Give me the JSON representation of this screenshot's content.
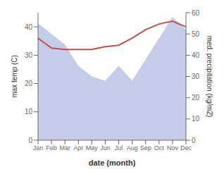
{
  "chart_data": {
    "type": "line",
    "categories": [
      "Jan",
      "Feb",
      "Mar",
      "Apr",
      "May",
      "Jun",
      "Jul",
      "Aug",
      "Sep",
      "Oct",
      "Nov",
      "Dec"
    ],
    "series": [
      {
        "type": "area",
        "axis": "y2",
        "color": "#c5cce8",
        "values": [
          55,
          50,
          45,
          35,
          30,
          28,
          35,
          28,
          38,
          48,
          58,
          52
        ]
      },
      {
        "type": "line",
        "color": "#c0504d",
        "values": [
          36,
          32.5,
          32,
          32,
          32,
          33,
          33.5,
          36,
          39,
          41,
          42,
          40
        ]
      }
    ],
    "x_label": "date (month)",
    "y_label": "max temp (C)",
    "y2_label": "med. precipitation (kg/m2)",
    "ylim": [
      0,
      45
    ],
    "yticks": [
      0,
      10,
      20,
      30,
      40
    ],
    "y2lim": [
      0,
      60
    ],
    "y2ticks": [
      0,
      10,
      20,
      30,
      40,
      50,
      60
    ],
    "grid": false
  }
}
